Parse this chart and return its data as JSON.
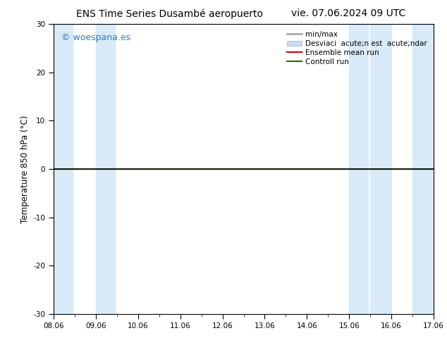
{
  "title_left": "ENS Time Series Dusambé aeropuerto",
  "title_right": "vie. 07.06.2024 09 UTC",
  "ylabel": "Temperature 850 hPa (°C)",
  "xlabel_ticks": [
    "08.06",
    "09.06",
    "10.06",
    "11.06",
    "12.06",
    "13.06",
    "14.06",
    "15.06",
    "16.06",
    "17.06"
  ],
  "ylim": [
    -30,
    30
  ],
  "xlim": [
    0,
    9
  ],
  "yticks": [
    -30,
    -20,
    -10,
    0,
    10,
    20,
    30
  ],
  "watermark": "© woespana.es",
  "watermark_color": "#3377cc",
  "background_color": "#ffffff",
  "plot_bg_color": "#ffffff",
  "shaded_band_color": "#d8eaf8",
  "shaded_bands_x": [
    [
      0.0,
      0.5
    ],
    [
      1.0,
      1.5
    ],
    [
      7.0,
      7.5
    ],
    [
      7.5,
      8.0
    ],
    [
      8.5,
      9.0
    ]
  ],
  "control_run_y": 0.0,
  "control_run_color": "#336600",
  "ensemble_mean_color": "#cc0000",
  "legend_label_minmax": "min/max",
  "legend_label_std": "Desviaci  acute;n est  acute;ndar",
  "legend_label_ensemble": "Ensemble mean run",
  "legend_label_control": "Controll run",
  "legend_color_minmax": "#aaaaaa",
  "legend_color_std": "#c8ddef",
  "title_fontsize": 10,
  "tick_fontsize": 7.5,
  "ylabel_fontsize": 8.5,
  "watermark_fontsize": 9,
  "legend_fontsize": 7.5
}
